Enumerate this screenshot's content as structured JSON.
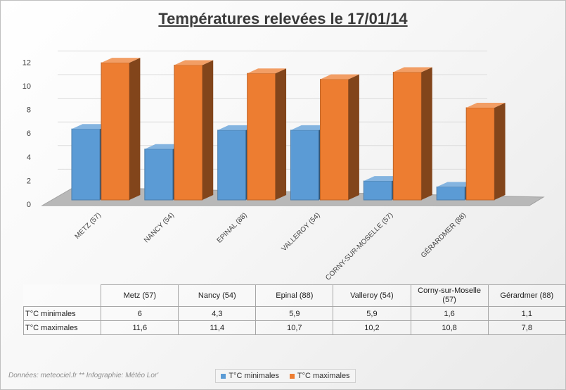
{
  "chart_data": {
    "type": "bar",
    "title": "Températures relevées le 17/01/14",
    "categories": [
      "METZ (57)",
      "NANCY (54)",
      "EPINAL (88)",
      "VALLEROY (54)",
      "CORNY-SUR-MOSELLE (57)",
      "GÉRARDMER (88)"
    ],
    "series": [
      {
        "name": "T°C minimales",
        "values": [
          6,
          4.3,
          5.9,
          5.9,
          1.6,
          1.1
        ],
        "color": "#5b9bd5"
      },
      {
        "name": "T°C maximales",
        "values": [
          11.6,
          11.4,
          10.7,
          10.2,
          10.8,
          7.8
        ],
        "color": "#ed7d31"
      }
    ],
    "yticks": [
      "0",
      "2",
      "4",
      "6",
      "8",
      "10",
      "12"
    ],
    "ylim": [
      0,
      12
    ],
    "grid": true,
    "legend_position": "bottom",
    "style": "3d-clustered-column"
  },
  "table": {
    "headers": [
      "Metz (57)",
      "Nancy (54)",
      "Epinal (88)",
      "Valleroy (54)",
      "Corny-sur-Moselle (57)",
      "Gérardmer (88)"
    ],
    "rows": [
      {
        "label": "T°C minimales",
        "cells": [
          "6",
          "4,3",
          "5,9",
          "5,9",
          "1,6",
          "1,1"
        ]
      },
      {
        "label": "T°C maximales",
        "cells": [
          "11,6",
          "11,4",
          "10,7",
          "10,2",
          "10,8",
          "7,8"
        ]
      }
    ]
  },
  "legend": {
    "min_label": "T°C minimales",
    "max_label": "T°C maximales"
  },
  "credit": "Données: meteociel.fr ** Infographie: Météo Lor'"
}
